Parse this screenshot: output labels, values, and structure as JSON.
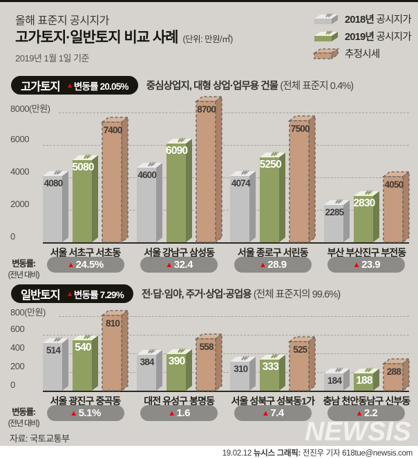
{
  "header": {
    "kicker": "올해 표준지 공시지가",
    "title": "고가토지·일반토지 비교 사례",
    "unit": "(단위: 만원/㎡)",
    "date": "2019년 1월 1일 기준"
  },
  "glyphs": {
    "up_triangle": "▲",
    "won_mark": "₩"
  },
  "legend": [
    {
      "year": "2018년",
      "rest": " 공시지가",
      "type": "y2018"
    },
    {
      "year": "2019년",
      "rest": " 공시지가",
      "type": "y2019"
    },
    {
      "year": "",
      "rest": "추정시세",
      "type": "est"
    }
  ],
  "rate_label": {
    "line1": "변동률:",
    "line2": "(전년 대비)"
  },
  "colors": {
    "background": "#d6d3ce",
    "bar_2018_front": "#c3c2c2",
    "bar_2018_side": "#9a999b",
    "bar_2018_top": "#ebebea",
    "bar_2019_front": "#90a063",
    "bar_2019_side": "#6f7e4c",
    "bar_2019_top": "#eff1e3",
    "bar_est_front": "#c69b7e",
    "bar_est_side": "#ab8167",
    "bar_est_top": "#d8b398",
    "est_dash": "#6e6b64",
    "accent_red": "#e60012",
    "pill_gray": "#8c8b87",
    "badge_black": "#17160f"
  },
  "chart_data": [
    {
      "type": "bar",
      "badge": "고가토지",
      "badge_rate": "변동률 20.05%",
      "subtitle": "중심상업지, 대형 상업·업무용 건물",
      "subtitle_note": "(전체 표준지 0.4%)",
      "ylabel": "만원/㎡",
      "ylim": [
        0,
        8000
      ],
      "grid": "dashed",
      "yticks": [
        {
          "label": "8000(만원)",
          "value": 8000
        },
        {
          "label": "6000",
          "value": 6000
        },
        {
          "label": "4000",
          "value": 4000
        },
        {
          "label": "2000",
          "value": 2000
        },
        {
          "label": "0",
          "value": 0
        }
      ],
      "categories": [
        "서울 서초구 서초동",
        "서울 강남구 삼성동",
        "서울 종로구 서린동",
        "부산 부산진구 부전동"
      ],
      "series": [
        {
          "name": "2018년 공시지가",
          "values": [
            4080,
            4600,
            4074,
            2285
          ]
        },
        {
          "name": "2019년 공시지가",
          "values": [
            5080,
            6090,
            5250,
            2830
          ]
        },
        {
          "name": "추정시세",
          "values": [
            7400,
            8700,
            7500,
            4050
          ]
        }
      ],
      "change_rates": [
        "24.5%",
        "32.4",
        "28.9",
        "23.9"
      ]
    },
    {
      "type": "bar",
      "badge": "일반토지",
      "badge_rate": "변동률 7.29%",
      "subtitle": "전·답·임야, 주거·상업·공업용",
      "subtitle_note": "(전체 표준지의 99.6%)",
      "ylabel": "만원/㎡",
      "ylim": [
        0,
        800
      ],
      "grid": "dashed",
      "yticks": [
        {
          "label": "800(만원)",
          "value": 800
        },
        {
          "label": "600",
          "value": 600
        },
        {
          "label": "400",
          "value": 400
        },
        {
          "label": "200",
          "value": 200
        },
        {
          "label": "0",
          "value": 0
        }
      ],
      "categories": [
        "서울 광진구 중곡동",
        "대전 유성구 봉명동",
        "서울 성북구 성북동1가",
        "충남 천안동남구 신부동"
      ],
      "series": [
        {
          "name": "2018년 공시지가",
          "values": [
            514,
            384,
            310,
            184
          ]
        },
        {
          "name": "2019년 공시지가",
          "values": [
            540,
            390,
            333,
            188
          ]
        },
        {
          "name": "추정시세",
          "values": [
            810,
            558,
            525,
            288
          ]
        }
      ],
      "change_rates": [
        "5.1%",
        "1.6",
        "7.4",
        "2.2"
      ]
    }
  ],
  "footer": {
    "source": "자료: 국토교통부",
    "logo": "NEWSIS",
    "credit_date": "19.02.12",
    "credit_label": "뉴시스 그래픽:",
    "credit_text": "전진우 기자 618tue@newsis.com"
  }
}
